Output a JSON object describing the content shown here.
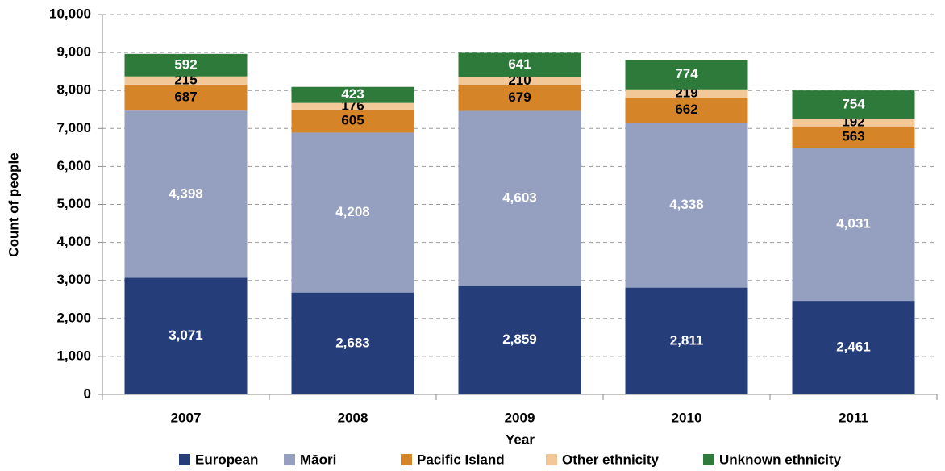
{
  "chart_data": {
    "type": "stacked_bar",
    "x_label": "Year",
    "y_label": "Count of people",
    "categories": [
      "2007",
      "2008",
      "2009",
      "2010",
      "2011"
    ],
    "series": [
      {
        "name": "European",
        "color": "#253d78",
        "label_color": "#ffffff",
        "values": [
          3071,
          2683,
          2859,
          2811,
          2461
        ],
        "value_labels": [
          "3,071",
          "2,683",
          "2,859",
          "2,811",
          "2,461"
        ]
      },
      {
        "name": "Māori",
        "color": "#95a0c0",
        "label_color": "#ffffff",
        "values": [
          4398,
          4208,
          4603,
          4338,
          4031
        ],
        "value_labels": [
          "4,398",
          "4,208",
          "4,603",
          "4,338",
          "4,031"
        ]
      },
      {
        "name": "Pacific Island",
        "color": "#d58528",
        "label_color": "#000000",
        "values": [
          687,
          605,
          679,
          662,
          563
        ]
      },
      {
        "name": "Other ethnicity",
        "color": "#f2c898",
        "label_color": "#000000",
        "values": [
          215,
          176,
          210,
          219,
          192
        ]
      },
      {
        "name": "Unknown ethnicity",
        "color": "#2e7a3a",
        "label_color": "#ffffff",
        "values": [
          592,
          423,
          641,
          774,
          754
        ]
      }
    ],
    "ylim": [
      0,
      10000
    ],
    "yticks": [
      0,
      {
        "value": 1000,
        "label": "1,000"
      },
      {
        "value": 2000,
        "label": "2,000"
      },
      {
        "value": 3000,
        "label": "3,000"
      },
      {
        "value": 4000,
        "label": "4,000"
      },
      {
        "value": 5000,
        "label": "5,000"
      },
      {
        "value": 6000,
        "label": "6,000"
      },
      {
        "value": 7000,
        "label": "7,000"
      },
      {
        "value": 8000,
        "label": "8,000"
      },
      {
        "value": 9000,
        "label": "9,000"
      },
      {
        "value": 10000,
        "label": "10,000"
      }
    ],
    "grid": true,
    "legend": "bottom"
  }
}
